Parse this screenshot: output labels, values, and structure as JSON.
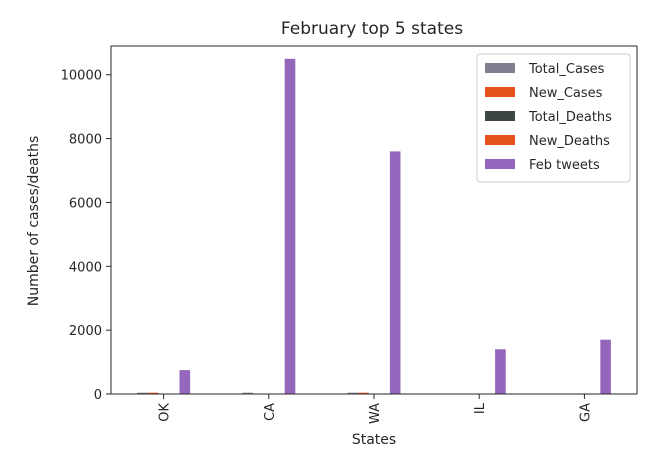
{
  "chart_data": {
    "type": "bar",
    "title": "February top 5 states",
    "xlabel": "States",
    "ylabel": "Number of cases/deaths",
    "categories": [
      "OK",
      "CA",
      "WA",
      "IL",
      "GA"
    ],
    "ylim": [
      0,
      10900
    ],
    "yticks": [
      0,
      2000,
      4000,
      6000,
      8000,
      10000
    ],
    "grid": false,
    "legend_position": "top-right",
    "series": [
      {
        "name": "Total_Cases",
        "color": "#7f7f8f",
        "values": [
          40,
          40,
          40,
          0,
          0
        ]
      },
      {
        "name": "New_Cases",
        "color": "#e4521e",
        "values": [
          40,
          0,
          40,
          0,
          0
        ]
      },
      {
        "name": "Total_Deaths",
        "color": "#3c4742",
        "values": [
          0,
          0,
          0,
          0,
          0
        ]
      },
      {
        "name": "New_Deaths",
        "color": "#e4521e",
        "values": [
          0,
          0,
          0,
          0,
          0
        ]
      },
      {
        "name": "Feb tweets",
        "color": "#9467bd",
        "values": [
          750,
          10500,
          7600,
          1400,
          1700
        ]
      }
    ]
  }
}
